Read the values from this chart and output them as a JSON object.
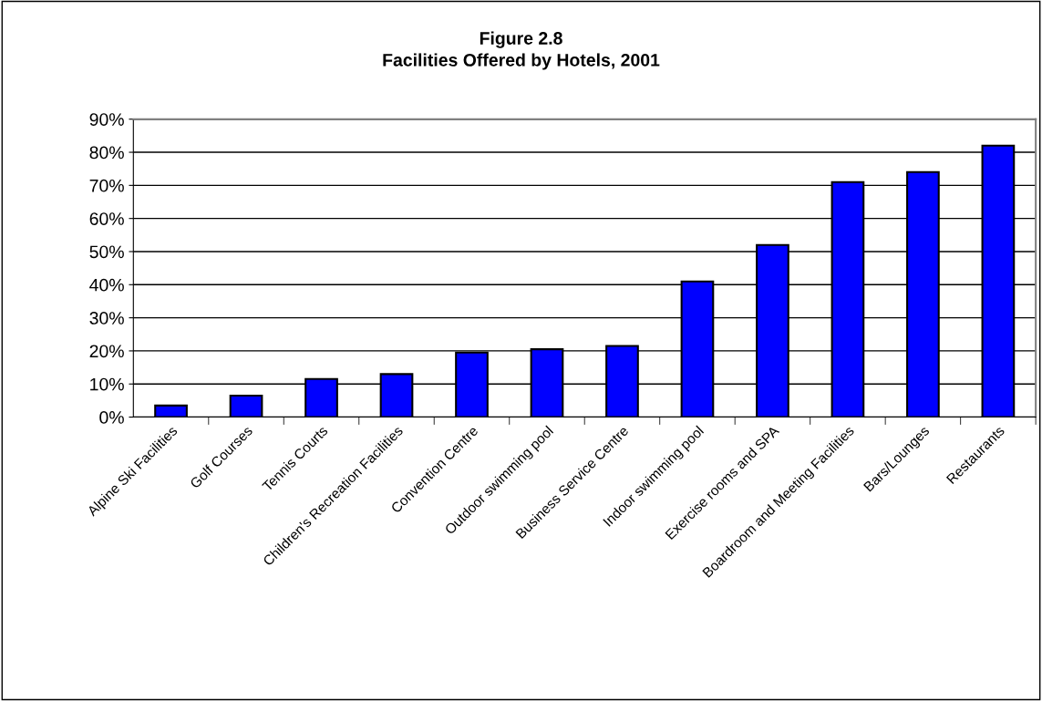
{
  "chart_data": {
    "type": "bar",
    "title": "Figure 2.8\nFacilities Offered by Hotels, 2001",
    "categories": [
      "Alpine Ski Facilities",
      "Golf Courses",
      "Tennis Courts",
      "Children's Recreation Facilities",
      "Convention Centre",
      "Outdoor swimming pool",
      "Business Service Centre",
      "Indoor swimming pool",
      "Exercise rooms and SPA",
      "Boardroom and Meeting Facilities",
      "Bars/Lounges",
      "Restaurants"
    ],
    "values": [
      3.5,
      6.5,
      11.5,
      13,
      19.5,
      20.5,
      21.5,
      41,
      52,
      71,
      74,
      82
    ],
    "color": "#0000ff",
    "ylim": [
      0,
      90
    ],
    "yticks": [
      {
        "value": 0,
        "label": "0%"
      },
      {
        "value": 10,
        "label": "10%"
      },
      {
        "value": 20,
        "label": "20%"
      },
      {
        "value": 30,
        "label": "30%"
      },
      {
        "value": 40,
        "label": "40%"
      },
      {
        "value": 50,
        "label": "50%"
      },
      {
        "value": 60,
        "label": "60%"
      },
      {
        "value": 70,
        "label": "70%"
      },
      {
        "value": 80,
        "label": "80%"
      },
      {
        "value": 90,
        "label": "90%"
      }
    ],
    "grid": "y",
    "legend": false
  }
}
